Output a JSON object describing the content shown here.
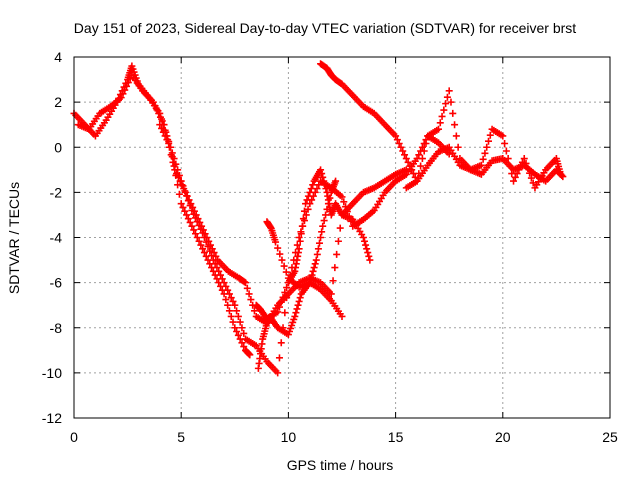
{
  "chart_data": {
    "type": "scatter",
    "title": "Day 151 of 2023, Sidereal Day-to-day VTEC variation (SDTVAR) for receiver brst",
    "xlabel": "GPS time / hours",
    "ylabel": "SDTVAR / TECUs",
    "xlim": [
      0,
      25
    ],
    "ylim": [
      -12,
      4
    ],
    "xticks": [
      "0",
      "5",
      "10",
      "15",
      "20",
      "25"
    ],
    "yticks": [
      "4",
      "2",
      "0",
      "-2",
      "-4",
      "-6",
      "-8",
      "-10",
      "-12"
    ],
    "grid": true,
    "marker": "+",
    "color": "#ff0000",
    "series": [
      {
        "x": [
          0.0,
          0.5,
          1.0,
          1.5,
          2.0,
          2.5,
          2.7,
          3.0,
          3.5,
          4.0,
          4.5,
          5.0,
          5.5,
          6.0,
          6.5,
          7.0,
          7.5,
          8.0,
          8.2
        ],
        "y": [
          1.5,
          1.0,
          0.5,
          1.2,
          2.0,
          3.0,
          3.6,
          2.8,
          2.2,
          1.5,
          0.0,
          -2.5,
          -3.5,
          -4.5,
          -5.5,
          -6.5,
          -8.0,
          -9.0,
          -9.2
        ]
      },
      {
        "x": [
          0.2,
          0.7,
          1.2,
          1.7,
          2.2,
          2.7,
          3.2,
          3.7,
          4.2,
          4.7,
          5.2,
          5.7,
          6.2,
          6.7,
          7.2,
          7.7,
          8.0,
          8.5,
          9.0,
          9.5,
          10.0,
          10.5,
          11.0,
          11.5,
          12.0,
          12.5,
          13.0,
          13.5,
          14.0,
          14.5,
          15.0,
          15.5
        ],
        "y": [
          1.0,
          0.8,
          1.5,
          1.8,
          2.2,
          3.2,
          2.5,
          2.0,
          1.0,
          -1.0,
          -2.0,
          -3.0,
          -4.0,
          -5.0,
          -5.5,
          -5.8,
          -6.0,
          -7.5,
          -7.8,
          -7.0,
          -6.5,
          -6.0,
          -5.8,
          -6.0,
          -6.5,
          -3.0,
          -2.5,
          -2.0,
          -1.8,
          -1.5,
          -1.2,
          -1.0
        ]
      },
      {
        "x": [
          4.0,
          4.5,
          5.0,
          5.5,
          6.0,
          6.5,
          7.0,
          7.5,
          8.0,
          8.5,
          9.0,
          9.5,
          10.0,
          10.5,
          11.0,
          11.5,
          12.0,
          12.5,
          13.0,
          13.5,
          14.0,
          14.5,
          15.0,
          15.5,
          16.0,
          16.5,
          17.0,
          17.5
        ],
        "y": [
          1.0,
          0.0,
          -1.5,
          -2.8,
          -3.8,
          -5.0,
          -6.0,
          -7.0,
          -8.5,
          -8.8,
          -9.5,
          -10.0,
          -6.0,
          -4.0,
          -2.5,
          -1.5,
          -1.8,
          -2.2,
          -3.5,
          -3.2,
          -2.8,
          -2.0,
          -1.5,
          -1.2,
          -0.5,
          0.5,
          0.2,
          -0.3
        ]
      },
      {
        "x": [
          8.6,
          8.8,
          9.0,
          9.2,
          9.5,
          10.0,
          10.3,
          10.6,
          11.0,
          11.3,
          11.6,
          12.0,
          12.2
        ],
        "y": [
          -9.8,
          -8.5,
          -7.8,
          -7.6,
          -8.0,
          -8.3,
          -7.5,
          -6.5,
          -6.0,
          -5.0,
          -3.5,
          -2.0,
          -1.5
        ]
      },
      {
        "x": [
          8.5,
          8.7,
          9.0,
          9.5,
          10.0,
          10.3,
          10.5,
          10.8,
          11.2,
          11.5,
          11.8,
          12.0,
          12.2,
          12.5,
          13.0,
          13.5,
          13.8
        ],
        "y": [
          -7.0,
          -7.2,
          -7.6,
          -7.3,
          -6.0,
          -5.5,
          -4.5,
          -2.5,
          -1.5,
          -1.0,
          -2.0,
          -3.0,
          -2.5,
          -3.0,
          -3.2,
          -4.0,
          -5.0
        ]
      },
      {
        "x": [
          11.5,
          11.8,
          12.0,
          12.2,
          12.5,
          13.0,
          13.5,
          14.0,
          14.5,
          15.0,
          15.5,
          16.0,
          16.5,
          17.0,
          17.5,
          18.0,
          18.5,
          19.0,
          19.5,
          20.0,
          20.5,
          21.0,
          21.5,
          22.0,
          22.5,
          22.8
        ],
        "y": [
          3.7,
          3.5,
          3.2,
          3.0,
          2.8,
          2.3,
          1.8,
          1.5,
          1.0,
          0.5,
          -0.5,
          -1.5,
          -0.8,
          -0.2,
          0.0,
          -0.8,
          -1.0,
          -1.2,
          -0.6,
          -0.5,
          -1.0,
          -0.8,
          -1.2,
          -1.5,
          -1.0,
          -1.3
        ]
      },
      {
        "x": [
          15.5,
          16.0,
          16.5,
          17.0,
          17.5,
          18.0,
          18.5,
          19.0,
          19.5,
          20.0,
          20.5,
          21.0,
          21.5,
          22.0,
          22.5,
          22.7
        ],
        "y": [
          -1.8,
          -1.5,
          0.5,
          0.8,
          2.5,
          -0.5,
          -1.0,
          -0.8,
          0.8,
          0.5,
          -1.5,
          -0.5,
          -1.8,
          -1.0,
          -0.5,
          -1.2
        ]
      },
      {
        "x": [
          9.0,
          9.2,
          9.4,
          10.0,
          10.5,
          11.0,
          11.5,
          12.0,
          12.5
        ],
        "y": [
          -3.3,
          -3.6,
          -4.2,
          -5.8,
          -6.2,
          -6.0,
          -6.3,
          -6.8,
          -7.5
        ]
      }
    ]
  }
}
